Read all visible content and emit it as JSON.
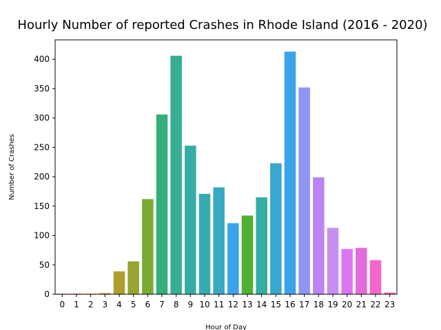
{
  "chart_data": {
    "type": "bar",
    "title": "Hourly Number of reported Crashes in Rhode Island (2016 - 2020)",
    "xlabel": "Hour of Day",
    "ylabel": "Number of Crashes",
    "categories": [
      "0",
      "1",
      "2",
      "3",
      "4",
      "5",
      "6",
      "7",
      "8",
      "9",
      "10",
      "11",
      "12",
      "13",
      "14",
      "15",
      "16",
      "17",
      "18",
      "19",
      "20",
      "21",
      "22",
      "23"
    ],
    "values": [
      1,
      1,
      1,
      2,
      39,
      56,
      162,
      306,
      406,
      253,
      171,
      182,
      121,
      134,
      165,
      223,
      413,
      352,
      199,
      113,
      77,
      79,
      58,
      3
    ],
    "ylim": [
      0,
      433
    ],
    "yticks": [
      0,
      50,
      100,
      150,
      200,
      250,
      300,
      350,
      400
    ],
    "colors": [
      "#f77189",
      "#f7754f",
      "#e08932",
      "#c39532",
      "#ae9d31",
      "#97a431",
      "#77ab31",
      "#33b07a",
      "#35ae93",
      "#36ada4",
      "#37abb4",
      "#38a9c5",
      "#3ba3ec",
      "#50b131",
      "#36ada4",
      "#39a7d0",
      "#3ba3ec",
      "#8e96f4",
      "#bb83f4",
      "#c68ef0",
      "#dd74f4",
      "#e46bd9",
      "#f565cc",
      "#f66bad"
    ],
    "grid": false,
    "legend": "none"
  }
}
